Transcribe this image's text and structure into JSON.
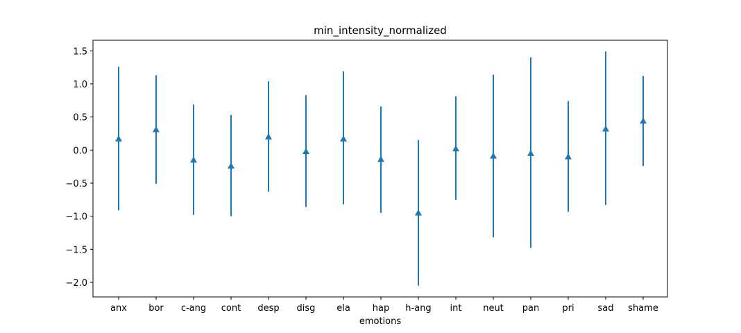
{
  "chart_data": {
    "type": "errorbar",
    "title": "min_intensity_normalized",
    "xlabel": "emotions",
    "ylabel": "",
    "categories": [
      "anx",
      "bor",
      "c-ang",
      "cont",
      "desp",
      "disg",
      "ela",
      "hap",
      "h-ang",
      "int",
      "neut",
      "pan",
      "pri",
      "sad",
      "shame"
    ],
    "values": [
      0.17,
      0.31,
      -0.15,
      -0.24,
      0.2,
      -0.02,
      0.17,
      -0.14,
      -0.95,
      0.02,
      -0.09,
      -0.05,
      -0.1,
      0.32,
      0.44
    ],
    "lower": [
      -0.91,
      -0.51,
      -0.98,
      -1.0,
      -0.63,
      -0.86,
      -0.82,
      -0.95,
      -2.05,
      -0.75,
      -1.32,
      -1.48,
      -0.93,
      -0.83,
      -0.24
    ],
    "upper": [
      1.26,
      1.13,
      0.69,
      0.53,
      1.04,
      0.83,
      1.19,
      0.66,
      0.15,
      0.81,
      1.14,
      1.4,
      0.74,
      1.49,
      1.12
    ],
    "marker": "triangle-up",
    "color": "#1f77b4",
    "ylim": [
      -2.22,
      1.66
    ],
    "yticks": [
      -2.0,
      -1.5,
      -1.0,
      -0.5,
      0.0,
      0.5,
      1.0,
      1.5
    ],
    "ytick_labels": [
      "−2.0",
      "−1.5",
      "−1.0",
      "−0.5",
      "0.0",
      "0.5",
      "1.0",
      "1.5"
    ],
    "grid": false,
    "legend": "none"
  }
}
